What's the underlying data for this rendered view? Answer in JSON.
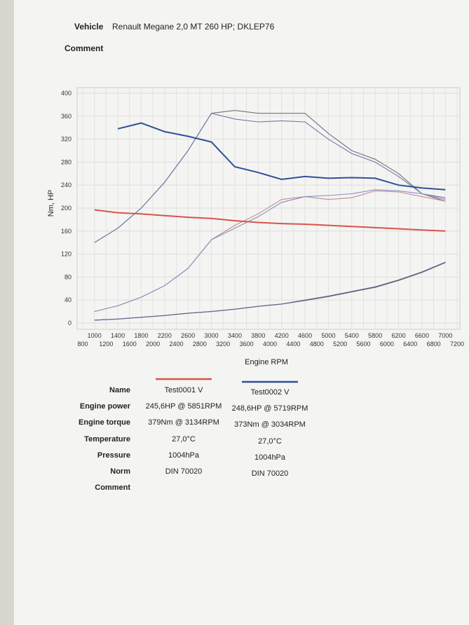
{
  "header": {
    "vehicle_label": "Vehicle",
    "vehicle": "Renault Megane 2,0 MT 260 HP; DKLEP76",
    "comment_label": "Comment"
  },
  "chart_data": {
    "type": "line",
    "x_label": "Engine RPM",
    "y_label": "Nm, HP",
    "x": [
      1000,
      1400,
      1800,
      2200,
      2600,
      3000,
      3400,
      3800,
      4200,
      4600,
      5000,
      5400,
      5800,
      6200,
      6600,
      7000
    ],
    "series": [
      {
        "color": "#7a6e80",
        "values": [
          140,
          165,
          200,
          245,
          300,
          365,
          370,
          365,
          365,
          365,
          330,
          300,
          285,
          260,
          225,
          212
        ]
      },
      {
        "color": "#6f7aa6",
        "values": [
          140,
          165,
          200,
          245,
          300,
          365,
          355,
          350,
          352,
          350,
          320,
          295,
          280,
          255,
          225,
          218
        ]
      },
      {
        "color": "#c98a8f",
        "values": [
          20,
          30,
          45,
          65,
          95,
          145,
          170,
          190,
          215,
          220,
          215,
          218,
          230,
          228,
          220,
          212
        ]
      },
      {
        "color": "#8590c0",
        "values": [
          20,
          30,
          45,
          65,
          95,
          145,
          165,
          185,
          210,
          220,
          222,
          225,
          232,
          230,
          225,
          215
        ]
      },
      {
        "color": "#8a5c70",
        "values": [
          5,
          7,
          10,
          13,
          17,
          20,
          24,
          29,
          33,
          39,
          46,
          54,
          62,
          74,
          88,
          105
        ]
      },
      {
        "color": "#5c6494",
        "values": [
          5,
          7,
          10,
          13,
          17,
          20,
          24,
          29,
          33,
          40,
          47,
          55,
          63,
          75,
          89,
          106
        ]
      },
      {
        "color": "#d9534a",
        "values": [
          197,
          192,
          190,
          187,
          184,
          182,
          178,
          175,
          173,
          172,
          170,
          168,
          166,
          164,
          162,
          160
        ]
      },
      {
        "color": "#2f4f9c",
        "values": [
          null,
          338,
          348,
          333,
          325,
          315,
          272,
          262,
          250,
          255,
          252,
          253,
          252,
          240,
          235,
          232
        ]
      }
    ],
    "xlim": [
      800,
      7200
    ],
    "ylim": [
      0,
      400
    ],
    "xticks": [
      800,
      1000,
      1200,
      1400,
      1600,
      1800,
      2000,
      2200,
      2400,
      2600,
      2800,
      3000,
      3200,
      3400,
      3600,
      3800,
      4000,
      4200,
      4400,
      4600,
      4800,
      5000,
      5200,
      5400,
      5600,
      5800,
      6000,
      6200,
      6400,
      6600,
      6800,
      7000,
      7200
    ],
    "yticks": [
      0,
      40,
      80,
      120,
      160,
      200,
      240,
      280,
      320,
      360,
      400
    ],
    "grid": true
  },
  "table": {
    "columns": [
      {
        "color": "#d9534a"
      },
      {
        "color": "#2f4f9c"
      }
    ],
    "rows": [
      [
        "Name",
        "Test0001 V",
        "Test0002 V"
      ],
      [
        "Engine power",
        "245,6HP @  5851RPM",
        "248,6HP @  5719RPM"
      ],
      [
        "Engine torque",
        "379Nm @ 3134RPM",
        "373Nm @ 3034RPM"
      ],
      [
        "Temperature",
        "27,0°C",
        "27,0°C"
      ],
      [
        "Pressure",
        "1004hPa",
        "1004hPa"
      ],
      [
        "Norm",
        "DIN 70020",
        "DIN 70020"
      ],
      [
        "Comment"
      ]
    ]
  }
}
